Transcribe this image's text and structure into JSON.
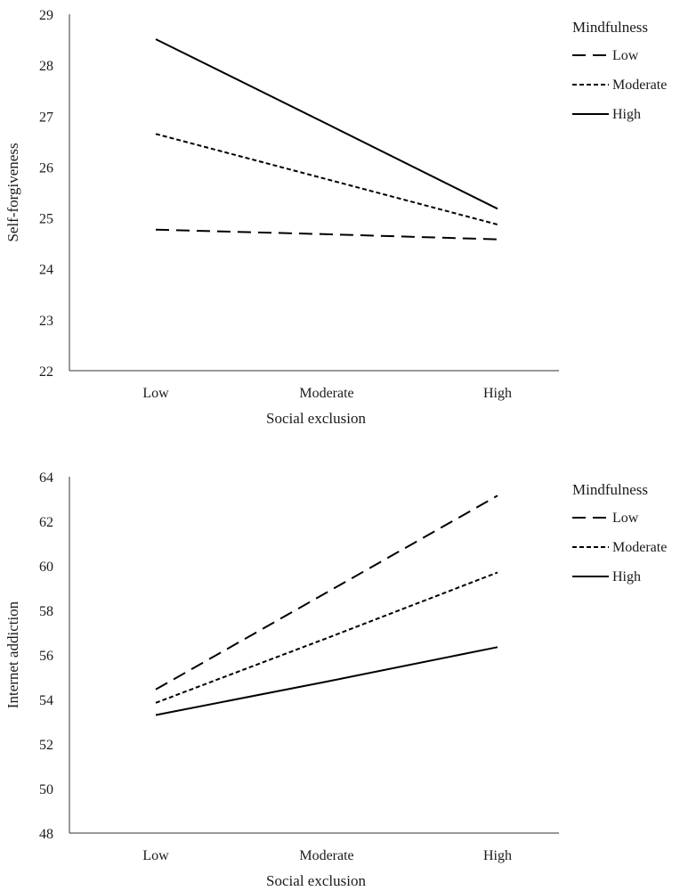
{
  "chart_data": [
    {
      "type": "line",
      "title": "",
      "xlabel": "Social exclusion",
      "ylabel": "Self-forgiveness",
      "categories": [
        "Low",
        "Moderate",
        "High"
      ],
      "ylim": [
        22,
        29
      ],
      "yticks": [
        22,
        23,
        24,
        25,
        26,
        27,
        28,
        29
      ],
      "grid": false,
      "legend": {
        "title": "Mindfulness",
        "position": "top-right"
      },
      "series": [
        {
          "name": "Low",
          "style": "long-dash",
          "values": [
            24.77,
            24.68,
            24.58
          ]
        },
        {
          "name": "Moderate",
          "style": "short-dash",
          "values": [
            26.65,
            25.76,
            24.87
          ]
        },
        {
          "name": "High",
          "style": "solid",
          "values": [
            28.51,
            26.85,
            25.18
          ]
        }
      ]
    },
    {
      "type": "line",
      "title": "",
      "xlabel": "Social exclusion",
      "ylabel": "Internet addiction",
      "categories": [
        "Low",
        "Moderate",
        "High"
      ],
      "ylim": [
        48,
        64
      ],
      "yticks": [
        48,
        50,
        52,
        54,
        56,
        58,
        60,
        62,
        64
      ],
      "grid": false,
      "legend": {
        "title": "Mindfulness",
        "position": "top-right"
      },
      "series": [
        {
          "name": "Low",
          "style": "long-dash",
          "values": [
            54.45,
            58.8,
            63.15
          ]
        },
        {
          "name": "Moderate",
          "style": "short-dash",
          "values": [
            53.85,
            56.75,
            59.7
          ]
        },
        {
          "name": "High",
          "style": "solid",
          "values": [
            53.3,
            54.8,
            56.35
          ]
        }
      ]
    }
  ]
}
